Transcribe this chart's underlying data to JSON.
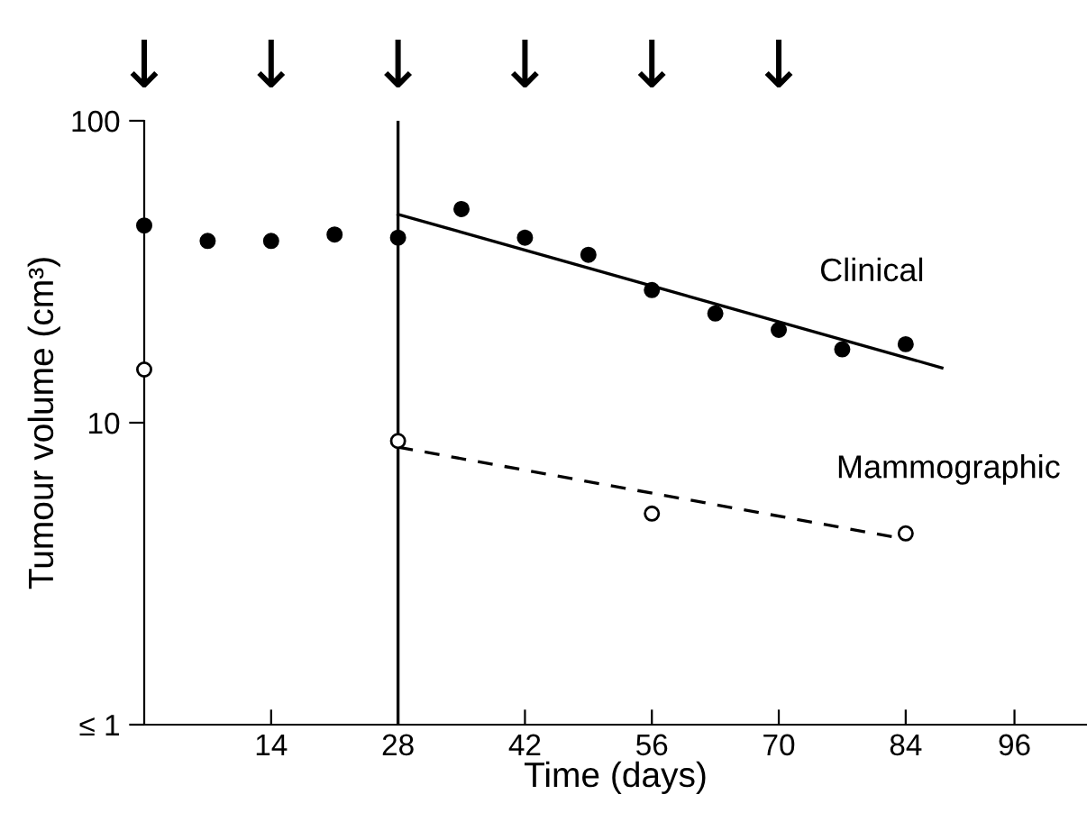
{
  "chart_data": {
    "type": "scatter",
    "xlabel": "Time (days)",
    "ylabel": "Tumour volume (cm³)",
    "log": "y",
    "grid": false,
    "legend": false,
    "xlim": [
      0,
      104
    ],
    "xticks": [
      14,
      28,
      42,
      56,
      70,
      84,
      96
    ],
    "ylim": [
      1,
      100
    ],
    "yticks": [
      {
        "value": 1,
        "label": "≤ 1"
      },
      10,
      100
    ],
    "ref_lines": [
      {
        "axis": "x",
        "value": 28,
        "color": "#000000",
        "line_style": "solid"
      }
    ],
    "annotations": [
      "↓",
      "↓",
      "↓",
      "↓",
      "↓",
      "↓"
    ],
    "series": [
      {
        "color": "#000000",
        "marker": "circle",
        "x": [
          0,
          7,
          14,
          21,
          28,
          35,
          42,
          49,
          56,
          63,
          70,
          77,
          84
        ],
        "values": [
          45,
          40,
          40,
          42,
          41,
          51,
          41,
          36,
          27.5,
          23,
          20.3,
          17.5,
          18.2
        ]
      },
      {
        "color": "#000000",
        "marker": "open circle",
        "x": [
          0,
          28,
          56,
          84
        ],
        "values": [
          15,
          8.7,
          5,
          4.3
        ]
      },
      {
        "type": "line",
        "name": "Clinical",
        "color": "#000000",
        "line_style": "solid",
        "marker": "none",
        "x": [
          28,
          88
        ],
        "values": [
          49,
          15.2
        ]
      },
      {
        "type": "line",
        "name": "Mammographic",
        "color": "#000000",
        "line_style": "dashed",
        "marker": "none",
        "x": [
          28,
          84.3
        ],
        "values": [
          8.3,
          4.1
        ]
      }
    ]
  }
}
